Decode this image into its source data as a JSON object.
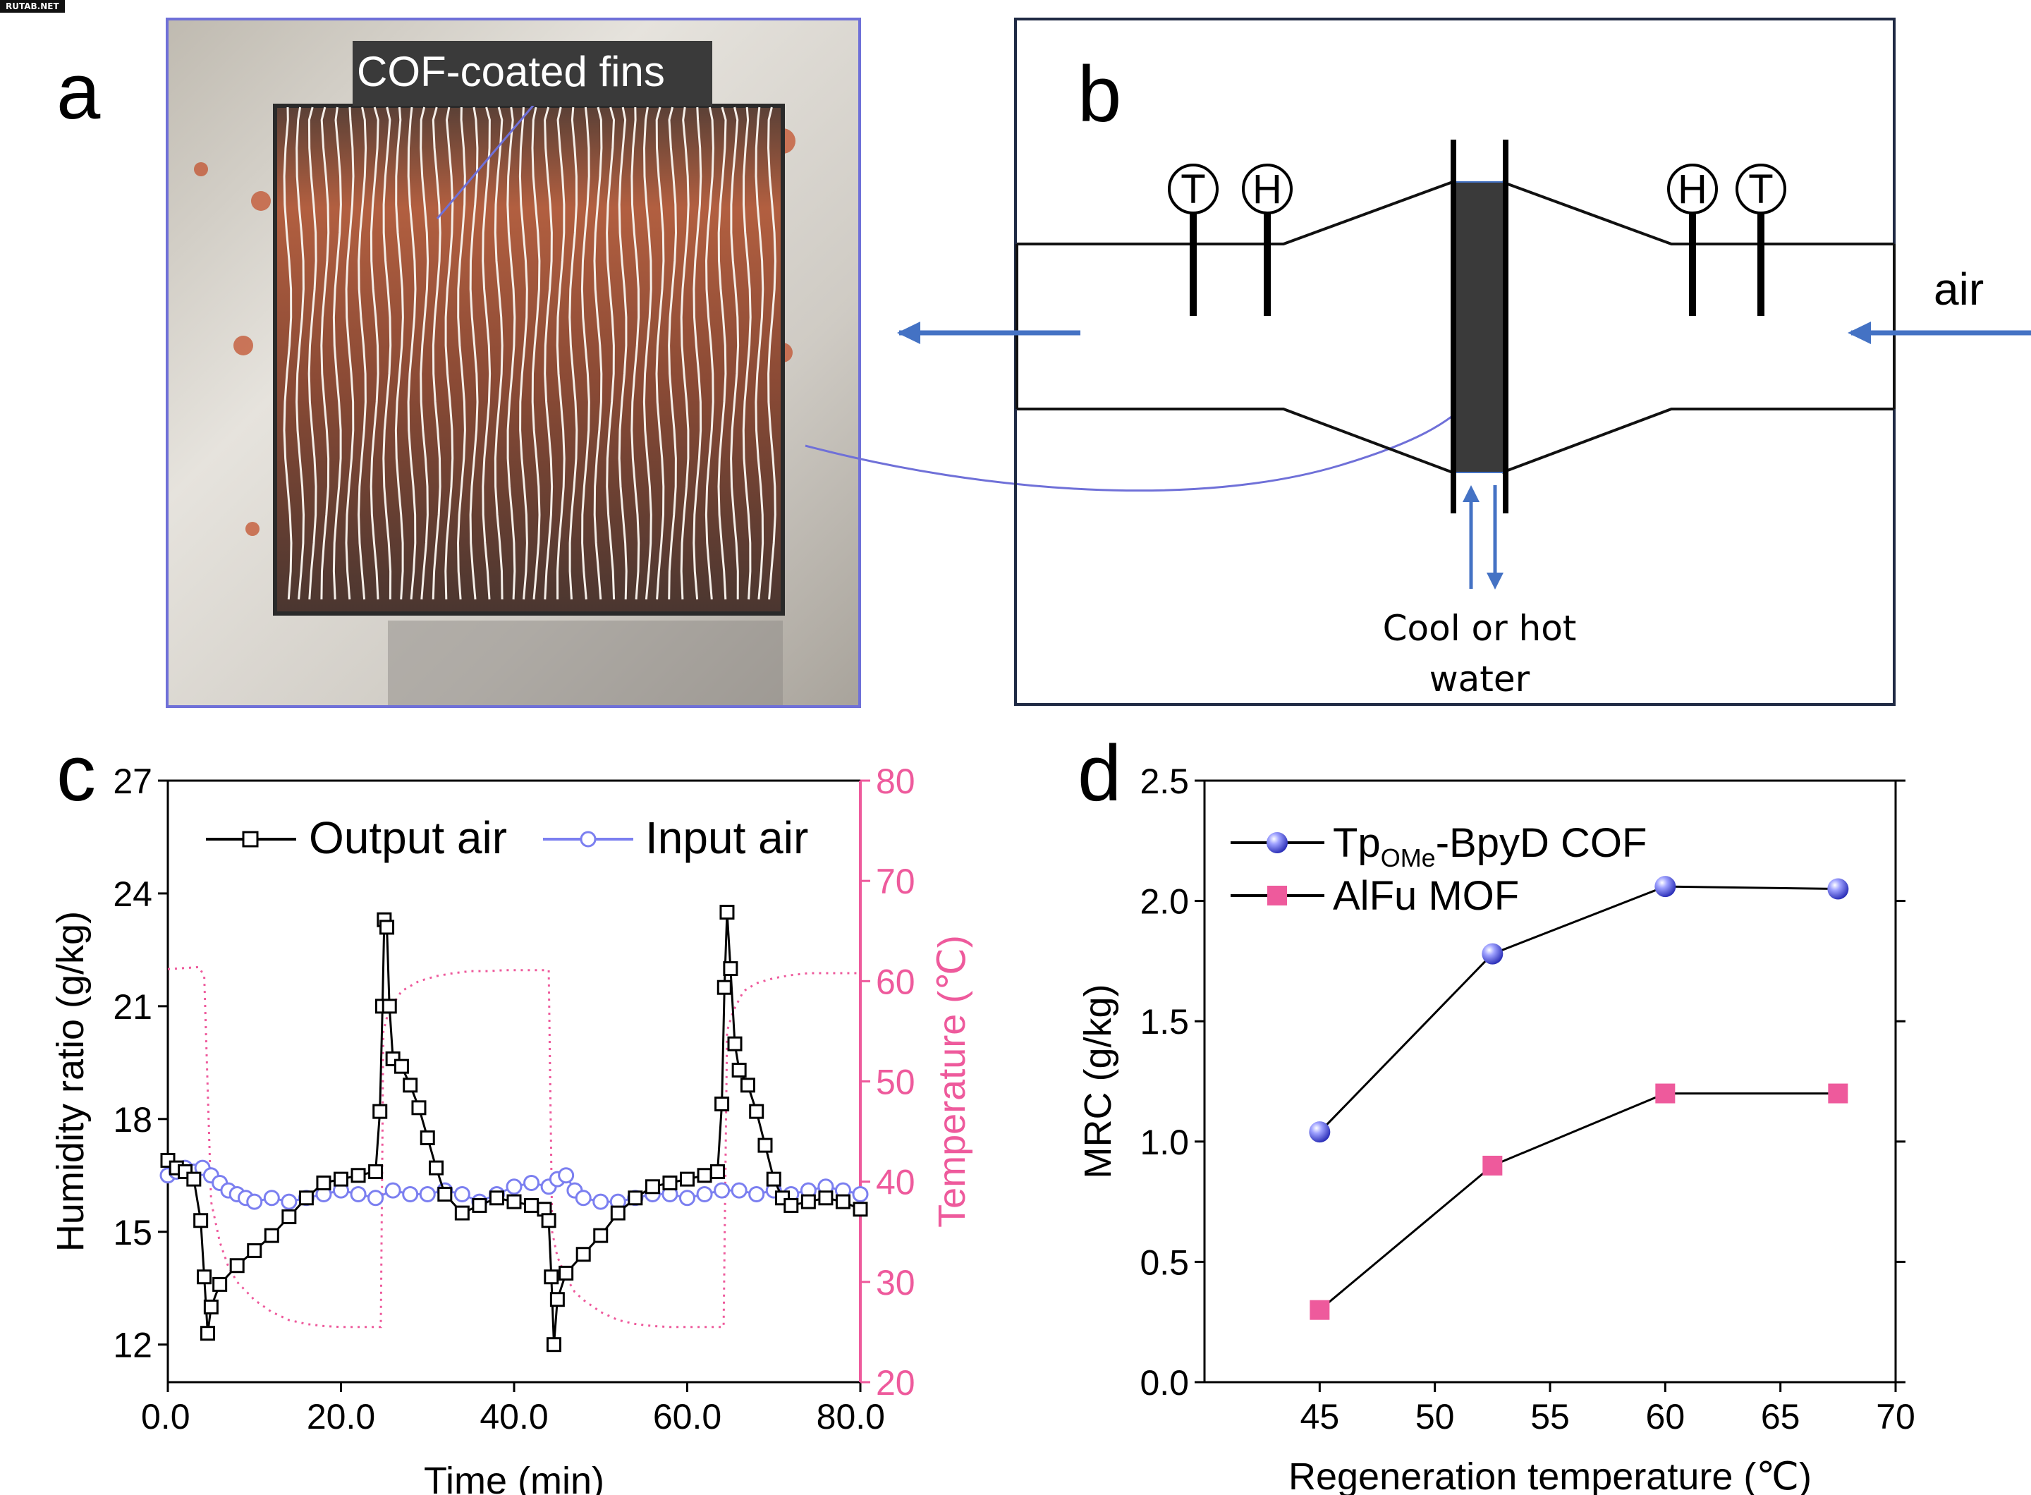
{
  "watermark": "RUTAB.NET",
  "panels": {
    "a": {
      "letter": "a",
      "callout": "COF-coated fins"
    },
    "b": {
      "letter": "b",
      "sensor_T": "T",
      "sensor_H": "H",
      "air_label": "air",
      "water_line1": "Cool or hot",
      "water_line2": "water"
    },
    "c": {
      "letter": "c"
    },
    "d": {
      "letter": "d"
    }
  },
  "colors": {
    "frame_a": "#6f70d8",
    "arrow": "#4472c4",
    "black": "#000000",
    "blue_series": "#7b7ff0",
    "pink": "#ee5a9c",
    "fin_box": "#3a3a3a"
  },
  "chart_data": [
    {
      "type": "line",
      "panel": "c",
      "xlabel": "Time (min)",
      "ylabel": "Humidity ratio (g/kg)",
      "y2label": "Temperature (℃)",
      "xlim": [
        0,
        80
      ],
      "ylim": [
        11,
        27
      ],
      "y2lim": [
        20,
        80
      ],
      "xticks": [
        "0.0",
        "20.0",
        "40.0",
        "60.0",
        "80.0"
      ],
      "xtick_values": [
        0,
        20,
        40,
        60,
        80
      ],
      "yticks": [
        "12",
        "15",
        "18",
        "21",
        "24",
        "27"
      ],
      "ytick_values": [
        12,
        15,
        18,
        21,
        24,
        27
      ],
      "y2ticks": [
        "20",
        "30",
        "40",
        "50",
        "60",
        "70",
        "80"
      ],
      "y2tick_values": [
        20,
        30,
        40,
        50,
        60,
        70,
        80
      ],
      "legend_position": "top",
      "series": [
        {
          "name": "Output air",
          "marker": "open-square",
          "x": [
            0,
            1,
            2,
            3,
            3.8,
            4.2,
            4.6,
            5,
            6,
            8,
            10,
            12,
            14,
            16,
            18,
            20,
            22,
            24,
            24.5,
            24.8,
            25,
            25.3,
            25.6,
            26,
            27,
            28,
            29,
            30,
            31,
            32,
            34,
            36,
            38,
            40,
            42,
            43.5,
            44,
            44.3,
            44.6,
            45,
            46,
            48,
            50,
            52,
            54,
            56,
            58,
            60,
            62,
            63.5,
            64,
            64.3,
            64.6,
            65,
            65.5,
            66,
            67,
            68,
            69,
            70,
            71,
            72,
            74,
            76,
            78,
            80
          ],
          "y": [
            16.9,
            16.7,
            16.6,
            16.4,
            15.3,
            13.8,
            12.3,
            13.0,
            13.6,
            14.1,
            14.5,
            14.9,
            15.4,
            15.9,
            16.3,
            16.4,
            16.5,
            16.6,
            18.2,
            21.0,
            23.3,
            23.1,
            21.0,
            19.6,
            19.4,
            18.9,
            18.3,
            17.5,
            16.7,
            16.0,
            15.5,
            15.7,
            15.9,
            15.8,
            15.7,
            15.6,
            15.3,
            13.8,
            12.0,
            13.2,
            13.9,
            14.4,
            14.9,
            15.5,
            15.9,
            16.2,
            16.3,
            16.4,
            16.5,
            16.6,
            18.4,
            21.5,
            23.5,
            22.0,
            20.0,
            19.3,
            18.9,
            18.2,
            17.3,
            16.4,
            15.9,
            15.7,
            15.8,
            15.9,
            15.8,
            15.6
          ]
        },
        {
          "name": "Input air",
          "marker": "open-circle",
          "x": [
            0,
            1,
            2,
            3,
            4,
            5,
            6,
            7,
            8,
            9,
            10,
            12,
            14,
            16,
            18,
            20,
            22,
            24,
            26,
            28,
            30,
            32,
            34,
            36,
            38,
            40,
            42,
            44,
            45,
            46,
            47,
            48,
            50,
            52,
            54,
            56,
            58,
            60,
            62,
            64,
            66,
            68,
            70,
            72,
            74,
            76,
            78,
            80
          ],
          "y": [
            16.5,
            16.6,
            16.7,
            16.6,
            16.7,
            16.5,
            16.3,
            16.1,
            16.0,
            15.9,
            15.8,
            15.9,
            15.8,
            15.9,
            16.0,
            16.1,
            16.0,
            15.9,
            16.1,
            16.0,
            16.0,
            16.1,
            16.0,
            15.8,
            16.0,
            16.2,
            16.3,
            16.2,
            16.4,
            16.5,
            16.1,
            15.9,
            15.8,
            15.8,
            15.9,
            16.0,
            16.0,
            15.9,
            16.0,
            16.1,
            16.1,
            16.0,
            16.1,
            16.0,
            16.1,
            16.2,
            16.1,
            16.0
          ]
        },
        {
          "name": "",
          "axis": "right",
          "style": "dotted",
          "x": [
            0,
            3.6,
            4.2,
            5,
            6,
            7,
            8,
            10,
            12,
            14,
            16,
            18,
            20,
            22,
            24.6,
            24.9,
            25.5,
            27,
            29,
            31,
            33,
            35,
            37,
            39,
            41,
            44,
            44.4,
            45,
            46,
            47,
            48,
            50,
            52,
            54,
            56,
            58,
            60,
            62,
            64.2,
            64.6,
            65.3,
            66.5,
            68,
            70,
            72,
            74,
            76,
            78,
            80
          ],
          "y": [
            61.2,
            61.4,
            60.5,
            38.0,
            34.0,
            31.5,
            30.0,
            28.2,
            27.0,
            26.2,
            25.8,
            25.6,
            25.5,
            25.5,
            25.5,
            55.0,
            57.0,
            59.0,
            60.0,
            60.5,
            60.8,
            61.0,
            61.0,
            61.1,
            61.1,
            61.1,
            35.0,
            32.5,
            30.5,
            29.0,
            28.2,
            27.0,
            26.2,
            25.8,
            25.6,
            25.5,
            25.5,
            25.5,
            25.5,
            55.0,
            57.0,
            59.0,
            59.8,
            60.3,
            60.6,
            60.8,
            60.8,
            60.8,
            60.8
          ]
        }
      ]
    },
    {
      "type": "line",
      "panel": "d",
      "xlabel": "Regeneration temperature (℃)",
      "ylabel": "MRC (g/kg)",
      "xlim": [
        40,
        70
      ],
      "ylim": [
        0,
        2.5
      ],
      "xticks": [
        "45",
        "50",
        "55",
        "60",
        "65",
        "70"
      ],
      "xtick_values": [
        45,
        50,
        55,
        60,
        65,
        70
      ],
      "yticks": [
        "0.0",
        "0.5",
        "1.0",
        "1.5",
        "2.0",
        "2.5"
      ],
      "ytick_values": [
        0,
        0.5,
        1.0,
        1.5,
        2.0,
        2.5
      ],
      "legend_position": "top-left",
      "series": [
        {
          "name": "TpOMe-BpyD COF",
          "name_main": "Tp",
          "name_sub": "OMe",
          "name_rest": "-BpyD COF",
          "marker": "sphere",
          "x": [
            45,
            52.5,
            60,
            67.5
          ],
          "y": [
            1.04,
            1.78,
            2.06,
            2.05
          ]
        },
        {
          "name": "AlFu MOF",
          "marker": "filled-square",
          "x": [
            45,
            52.5,
            60,
            67.5
          ],
          "y": [
            0.3,
            0.9,
            1.2,
            1.2
          ]
        }
      ]
    }
  ]
}
